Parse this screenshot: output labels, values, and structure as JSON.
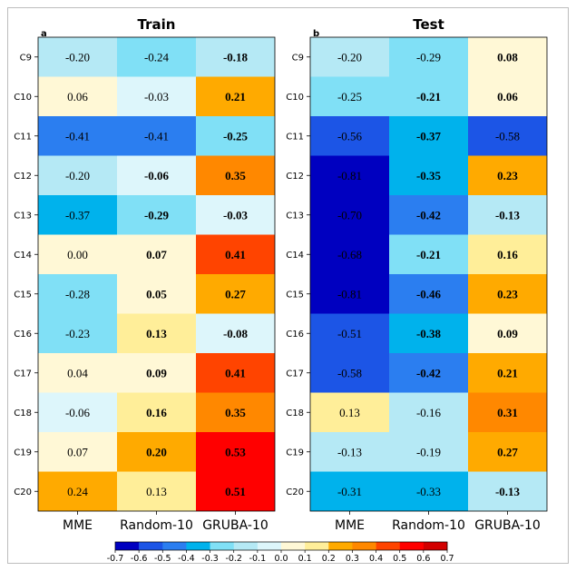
{
  "chart_data": [
    {
      "type": "heatmap",
      "panel_letter": "a",
      "title": "Train",
      "rows": [
        "C9",
        "C10",
        "C11",
        "C12",
        "C13",
        "C14",
        "C15",
        "C16",
        "C17",
        "C18",
        "C19",
        "C20"
      ],
      "columns": [
        "MME",
        "Random-10",
        "GRUBA-10"
      ],
      "values": [
        [
          "-0.20",
          "-0.24",
          "-0.18"
        ],
        [
          "0.06",
          "-0.03",
          "0.21"
        ],
        [
          "-0.41",
          "-0.41",
          "-0.25"
        ],
        [
          "-0.20",
          "-0.06",
          "0.35"
        ],
        [
          "-0.37",
          "-0.29",
          "-0.03"
        ],
        [
          "0.00",
          "0.07",
          "0.41"
        ],
        [
          "-0.28",
          "0.05",
          "0.27"
        ],
        [
          "-0.23",
          "0.13",
          "-0.08"
        ],
        [
          "0.04",
          "0.09",
          "0.41"
        ],
        [
          "-0.06",
          "0.16",
          "0.35"
        ],
        [
          "0.07",
          "0.20",
          "0.53"
        ],
        [
          "0.24",
          "0.13",
          "0.51"
        ]
      ],
      "bold": [
        [
          false,
          false,
          true
        ],
        [
          false,
          false,
          true
        ],
        [
          false,
          false,
          true
        ],
        [
          false,
          true,
          true
        ],
        [
          false,
          true,
          true
        ],
        [
          false,
          true,
          true
        ],
        [
          false,
          true,
          true
        ],
        [
          false,
          true,
          true
        ],
        [
          false,
          true,
          true
        ],
        [
          false,
          true,
          true
        ],
        [
          false,
          true,
          true
        ],
        [
          false,
          false,
          true
        ]
      ]
    },
    {
      "type": "heatmap",
      "panel_letter": "b",
      "title": "Test",
      "rows": [
        "C9",
        "C10",
        "C11",
        "C12",
        "C13",
        "C14",
        "C15",
        "C16",
        "C17",
        "C18",
        "C19",
        "C20"
      ],
      "columns": [
        "MME",
        "Random-10",
        "GRUBA-10"
      ],
      "values": [
        [
          "-0.20",
          "-0.29",
          "0.08"
        ],
        [
          "-0.25",
          "-0.21",
          "0.06"
        ],
        [
          "-0.56",
          "-0.37",
          "-0.58"
        ],
        [
          "-0.81",
          "-0.35",
          "0.23"
        ],
        [
          "-0.70",
          "-0.42",
          "-0.13"
        ],
        [
          "-0.68",
          "-0.21",
          "0.16"
        ],
        [
          "-0.81",
          "-0.46",
          "0.23"
        ],
        [
          "-0.51",
          "-0.38",
          "0.09"
        ],
        [
          "-0.58",
          "-0.42",
          "0.21"
        ],
        [
          "0.13",
          "-0.16",
          "0.31"
        ],
        [
          "-0.13",
          "-0.19",
          "0.27"
        ],
        [
          "-0.31",
          "-0.33",
          "-0.13"
        ]
      ],
      "bold": [
        [
          false,
          false,
          true
        ],
        [
          false,
          true,
          true
        ],
        [
          false,
          true,
          false
        ],
        [
          false,
          true,
          true
        ],
        [
          false,
          true,
          true
        ],
        [
          false,
          true,
          true
        ],
        [
          false,
          true,
          true
        ],
        [
          false,
          true,
          true
        ],
        [
          false,
          true,
          true
        ],
        [
          false,
          false,
          true
        ],
        [
          false,
          false,
          true
        ],
        [
          false,
          false,
          true
        ]
      ]
    }
  ],
  "colorbar": {
    "ticks": [
      "-0.7",
      "-0.6",
      "-0.5",
      "-0.4",
      "-0.3",
      "-0.2",
      "-0.1",
      "0.0",
      "0.1",
      "0.2",
      "0.3",
      "0.4",
      "0.5",
      "0.6",
      "0.7"
    ],
    "range": [
      -0.7,
      0.7
    ],
    "colors": [
      "#0000c0",
      "#1c55e6",
      "#2b7ef0",
      "#00b2ec",
      "#80e0f6",
      "#b5e9f5",
      "#ddf6fb",
      "#fff8d6",
      "#ffee99",
      "#ffaa00",
      "#ff8800",
      "#ff4400",
      "#ff0000",
      "#d20000"
    ]
  }
}
